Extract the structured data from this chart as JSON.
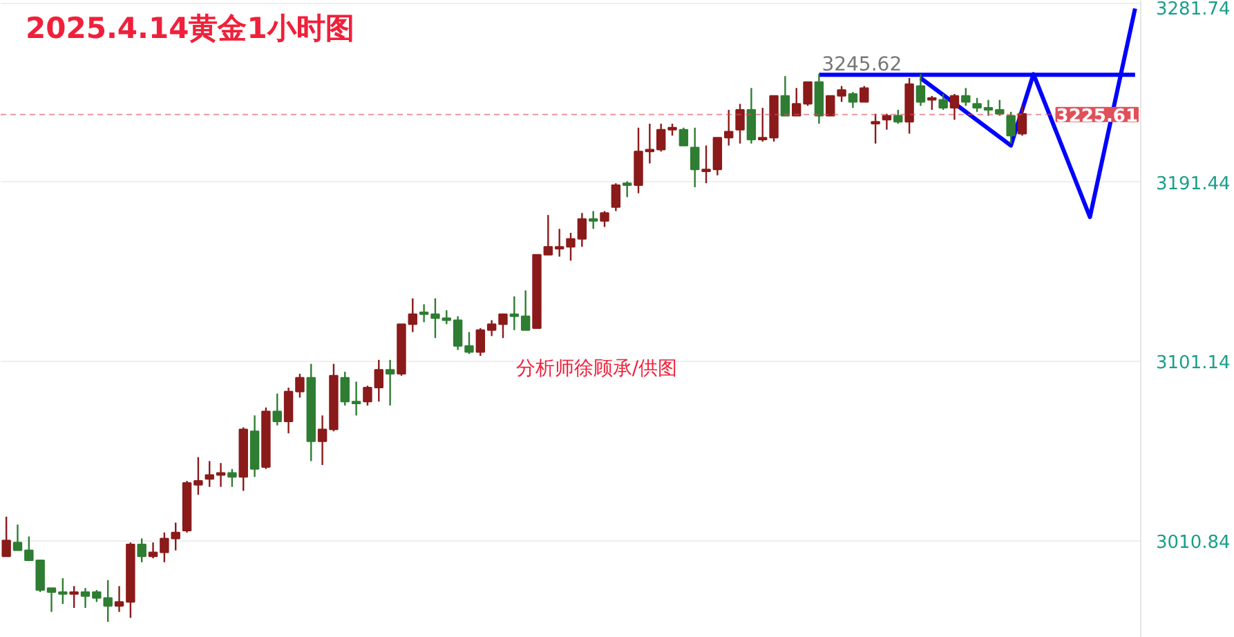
{
  "chart_data": {
    "type": "candlestick",
    "title": "2025.4.14黄金1小时图",
    "annotations": [
      "分析师徐顾承/供图",
      {
        "text": "3245.62",
        "y": 3245.62
      }
    ],
    "categories": [
      null,
      null,
      null,
      null,
      null,
      null,
      null,
      null,
      null,
      null,
      null,
      null,
      null,
      null,
      null,
      null,
      null,
      null,
      null,
      null,
      null,
      null,
      null,
      null,
      null,
      null,
      null,
      null,
      null,
      null,
      null,
      null,
      null,
      null,
      null,
      null,
      null,
      null,
      null,
      null,
      null,
      null,
      null,
      null,
      null,
      null,
      null,
      null,
      null,
      null,
      null,
      null,
      null,
      null,
      null,
      null,
      null,
      null,
      null,
      null,
      null,
      null,
      null,
      null,
      null,
      null,
      null,
      null,
      null,
      null,
      null,
      null,
      null,
      null,
      null,
      null,
      null,
      null,
      null,
      null,
      null,
      null,
      null,
      null,
      null,
      null,
      null,
      null,
      null,
      null,
      null,
      null,
      null,
      null,
      null,
      null,
      null,
      null,
      null,
      null,
      null
    ],
    "ohlc": [
      [
        3003,
        3023,
        3003,
        3011
      ],
      [
        3010,
        3019,
        3006,
        3006
      ],
      [
        3006,
        3013,
        3001,
        3001
      ],
      [
        3001,
        3001,
        2985,
        2986
      ],
      [
        2987,
        2987,
        2975,
        2985
      ],
      [
        2985,
        2992,
        2979,
        2984
      ],
      [
        2984,
        2988,
        2977,
        2985
      ],
      [
        2985,
        2987,
        2977,
        2983
      ],
      [
        2985,
        2986,
        2980,
        2982
      ],
      [
        2982,
        2991,
        2970,
        2978
      ],
      [
        2978,
        2988,
        2975,
        2980
      ],
      [
        2980,
        3010,
        2972,
        3009
      ],
      [
        3009,
        3012,
        3000,
        3003
      ],
      [
        3003,
        3010,
        3002,
        3005
      ],
      [
        3005,
        3015,
        3000,
        3012
      ],
      [
        3012,
        3020,
        3006,
        3015
      ],
      [
        3016,
        3041,
        3015,
        3040
      ],
      [
        3039,
        3053,
        3034,
        3041
      ],
      [
        3042,
        3051,
        3038,
        3044
      ],
      [
        3044,
        3050,
        3038,
        3045
      ],
      [
        3045,
        3047,
        3038,
        3043
      ],
      [
        3043,
        3068,
        3036,
        3067
      ],
      [
        3066,
        3074,
        3043,
        3047
      ],
      [
        3048,
        3078,
        3047,
        3076
      ],
      [
        3076,
        3085,
        3069,
        3071
      ],
      [
        3071,
        3088,
        3065,
        3086
      ],
      [
        3086,
        3095,
        3083,
        3093
      ],
      [
        3093,
        3100,
        3051,
        3061
      ],
      [
        3061,
        3074,
        3049,
        3067
      ],
      [
        3067,
        3100,
        3066,
        3094
      ],
      [
        3093,
        3096,
        3079,
        3081
      ],
      [
        3081,
        3091,
        3074,
        3080
      ],
      [
        3081,
        3089,
        3079,
        3088
      ],
      [
        3088,
        3102,
        3081,
        3097
      ],
      [
        3097,
        3102,
        3079,
        3095
      ],
      [
        3095,
        3120,
        3094,
        3120
      ],
      [
        3120,
        3133,
        3116,
        3125
      ],
      [
        3126,
        3130,
        3121,
        3125
      ],
      [
        3125,
        3133,
        3113,
        3123
      ],
      [
        3123,
        3127,
        3120,
        3122
      ],
      [
        3122,
        3124,
        3107,
        3109
      ],
      [
        3109,
        3116,
        3105,
        3106
      ],
      [
        3106,
        3118,
        3104,
        3117
      ],
      [
        3117,
        3122,
        3114,
        3120
      ],
      [
        3120,
        3125,
        3113,
        3125
      ],
      [
        3125,
        3134,
        3117,
        3124
      ],
      [
        3124,
        3137,
        3117,
        3117
      ],
      [
        3118,
        3155,
        3118,
        3155
      ],
      [
        3155,
        3175,
        3155,
        3159
      ],
      [
        3158,
        3168,
        3154,
        3159
      ],
      [
        3159,
        3166,
        3152,
        3163
      ],
      [
        3163,
        3176,
        3159,
        3173
      ],
      [
        3173,
        3177,
        3168,
        3172
      ],
      [
        3172,
        3177,
        3169,
        3176
      ],
      [
        3179,
        3191,
        3177,
        3190
      ],
      [
        3191,
        3192,
        3184,
        3190
      ],
      [
        3190,
        3219,
        3186,
        3207
      ],
      [
        3207,
        3221,
        3201,
        3208
      ],
      [
        3208,
        3221,
        3207,
        3218
      ],
      [
        3218,
        3221,
        3215,
        3219
      ],
      [
        3218,
        3219,
        3210,
        3210
      ],
      [
        3209,
        3219,
        3189,
        3198
      ],
      [
        3197,
        3210,
        3191,
        3198
      ],
      [
        3198,
        3214,
        3195,
        3214
      ],
      [
        3214,
        3228,
        3210,
        3217
      ],
      [
        3218,
        3231,
        3211,
        3228
      ],
      [
        3228,
        3239,
        3211,
        3213
      ],
      [
        3213,
        3229,
        3212,
        3214
      ],
      [
        3214,
        3235,
        3212,
        3235
      ],
      [
        3235,
        3245,
        3225,
        3225
      ],
      [
        3225,
        3239,
        3225,
        3231
      ],
      [
        3231,
        3242,
        3230,
        3242
      ],
      [
        3242,
        3246,
        3221,
        3225
      ],
      [
        3225,
        3235,
        3225,
        3235
      ],
      [
        3235,
        3240,
        3232,
        3238
      ],
      [
        3236,
        3237,
        3229,
        3232
      ],
      [
        3232,
        3240,
        3232,
        3239
      ],
      [
        3221,
        3226,
        3211,
        3222
      ],
      [
        3223,
        3226,
        3218,
        3225
      ],
      [
        3225,
        3228,
        3221,
        3222
      ],
      [
        3222,
        3244,
        3216,
        3241
      ],
      [
        3240,
        3246,
        3230,
        3232
      ],
      [
        3233,
        3235,
        3228,
        3234
      ],
      [
        3233,
        3236,
        3228,
        3229
      ],
      [
        3229,
        3236,
        3223,
        3235
      ],
      [
        3235,
        3239,
        3230,
        3232
      ],
      [
        3231,
        3234,
        3227,
        3229
      ],
      [
        3229,
        3233,
        3225,
        3228
      ],
      [
        3228,
        3233,
        3225,
        3226
      ],
      [
        3225,
        3227,
        3211,
        3215
      ],
      [
        3216,
        3230,
        3215,
        3226
      ],
      null,
      null,
      null,
      null,
      null,
      null,
      null,
      null,
      null,
      null
    ],
    "colors": [
      "#8b1a1a",
      "#2e7d32",
      "#2e7d32",
      "#2e7d32",
      "#2e7d32",
      "#2e7d32",
      "#8b1a1a",
      "#2e7d32",
      "#2e7d32",
      "#2e7d32",
      "#8b1a1a",
      "#8b1a1a",
      "#2e7d32",
      "#8b1a1a",
      "#8b1a1a",
      "#8b1a1a",
      "#8b1a1a",
      "#8b1a1a",
      "#8b1a1a",
      "#8b1a1a",
      "#2e7d32",
      "#8b1a1a",
      "#2e7d32",
      "#8b1a1a",
      "#2e7d32",
      "#8b1a1a",
      "#8b1a1a",
      "#2e7d32",
      "#8b1a1a",
      "#8b1a1a",
      "#2e7d32",
      "#2e7d32",
      "#8b1a1a",
      "#8b1a1a",
      "#2e7d32",
      "#8b1a1a",
      "#8b1a1a",
      "#2e7d32",
      "#2e7d32",
      "#2e7d32",
      "#2e7d32",
      "#2e7d32",
      "#8b1a1a",
      "#8b1a1a",
      "#8b1a1a",
      "#2e7d32",
      "#2e7d32",
      "#8b1a1a",
      "#8b1a1a",
      "#8b1a1a",
      "#8b1a1a",
      "#8b1a1a",
      "#2e7d32",
      "#8b1a1a",
      "#8b1a1a",
      "#2e7d32",
      "#8b1a1a",
      "#8b1a1a",
      "#8b1a1a",
      "#8b1a1a",
      "#2e7d32",
      "#2e7d32",
      "#8b1a1a",
      "#8b1a1a",
      "#8b1a1a",
      "#8b1a1a",
      "#2e7d32",
      "#8b1a1a",
      "#8b1a1a",
      "#2e7d32",
      "#8b1a1a",
      "#8b1a1a",
      "#2e7d32",
      "#8b1a1a",
      "#8b1a1a",
      "#2e7d32",
      "#8b1a1a",
      "#8b1a1a",
      "#8b1a1a",
      "#2e7d32",
      "#8b1a1a",
      "#2e7d32",
      "#8b1a1a",
      "#2e7d32",
      "#8b1a1a",
      "#2e7d32",
      "#2e7d32",
      "#2e7d32",
      "#2e7d32",
      "#2e7d32",
      "#8b1a1a",
      null,
      null,
      null,
      null,
      null,
      null,
      null,
      null,
      null,
      null
    ],
    "series": [
      {
        "type": "line",
        "color": "#0000ff",
        "values": [
          null,
          null,
          null,
          null,
          null,
          null,
          null,
          null,
          null,
          null,
          null,
          null,
          null,
          null,
          null,
          null,
          null,
          null,
          null,
          null,
          null,
          null,
          null,
          null,
          null,
          null,
          null,
          null,
          null,
          null,
          null,
          null,
          null,
          null,
          null,
          null,
          null,
          null,
          null,
          null,
          null,
          null,
          null,
          null,
          null,
          null,
          null,
          null,
          null,
          null,
          null,
          null,
          null,
          null,
          null,
          null,
          null,
          null,
          null,
          null,
          null,
          null,
          null,
          null,
          null,
          null,
          null,
          null,
          null,
          null,
          null,
          null,
          3245.62,
          null,
          null,
          null,
          null,
          null,
          null,
          null,
          null,
          null,
          null,
          null,
          null,
          null,
          null,
          null,
          null,
          null,
          null,
          null,
          null,
          null,
          null,
          null,
          null,
          null,
          null,
          null,
          3245.62
        ]
      },
      {
        "type": "line",
        "color": "#0000ff",
        "values": [
          null,
          null,
          null,
          null,
          null,
          null,
          null,
          null,
          null,
          null,
          null,
          null,
          null,
          null,
          null,
          null,
          null,
          null,
          null,
          null,
          null,
          null,
          null,
          null,
          null,
          null,
          null,
          null,
          null,
          null,
          null,
          null,
          null,
          null,
          null,
          null,
          null,
          null,
          null,
          null,
          null,
          null,
          null,
          null,
          null,
          null,
          null,
          null,
          null,
          null,
          null,
          null,
          null,
          null,
          null,
          null,
          null,
          null,
          null,
          null,
          null,
          null,
          null,
          null,
          null,
          null,
          null,
          null,
          null,
          null,
          null,
          null,
          null,
          null,
          null,
          null,
          null,
          null,
          null,
          null,
          null,
          3244,
          null,
          null,
          null,
          null,
          null,
          null,
          null,
          3210,
          null,
          3246,
          null,
          null,
          null,
          null,
          3174,
          null,
          null,
          null,
          3279
        ]
      }
    ],
    "ylim": [
      2962,
      3283
    ],
    "yticks": [
      3010.84,
      3101.14,
      3191.44,
      3281.74
    ],
    "ref_lines": [
      {
        "axis": "y",
        "value": 3225.61,
        "label": "3225.61",
        "color": "#e0505a",
        "line_style": "dashed"
      }
    ],
    "grid": "y",
    "tick_labels": "y"
  }
}
